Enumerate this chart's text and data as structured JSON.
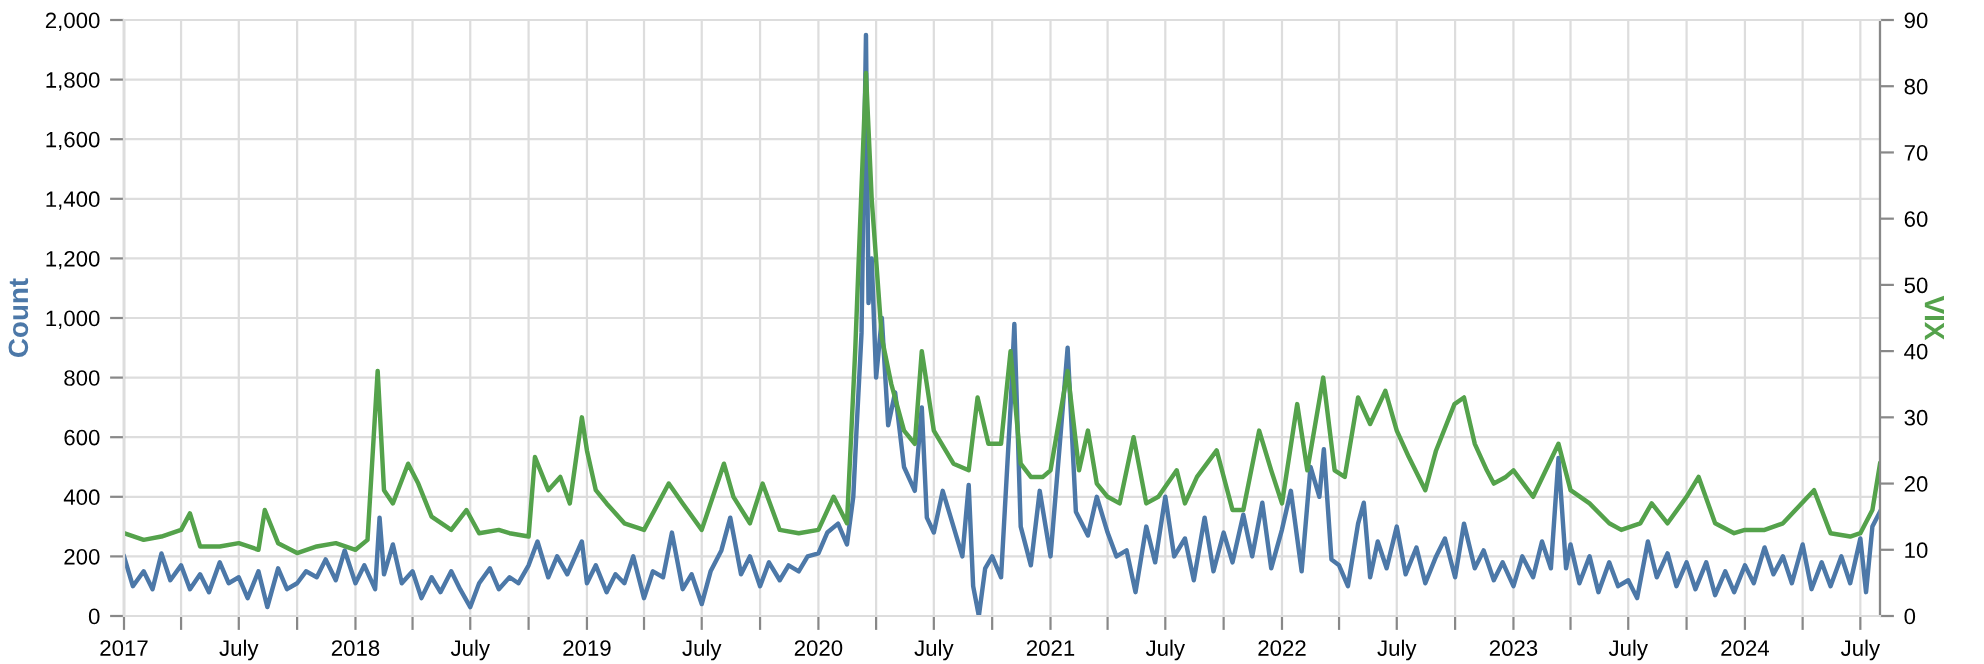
{
  "chart_data": {
    "type": "line",
    "xlabel": null,
    "ylabel": "Count",
    "y2label": "VIX",
    "grid": true,
    "marker": "none",
    "line_style": "solid",
    "xlim": [
      "2017-01-01",
      "2024-08-01"
    ],
    "xticks": [
      {
        "value": "2017-01-01",
        "label": "2017"
      },
      {
        "value": "2017-04-01",
        "label": null
      },
      {
        "value": "2017-07-01",
        "label": "July"
      },
      {
        "value": "2017-10-01",
        "label": null
      },
      {
        "value": "2018-01-01",
        "label": "2018"
      },
      {
        "value": "2018-04-01",
        "label": null
      },
      {
        "value": "2018-07-01",
        "label": "July"
      },
      {
        "value": "2018-10-01",
        "label": null
      },
      {
        "value": "2019-01-01",
        "label": "2019"
      },
      {
        "value": "2019-04-01",
        "label": null
      },
      {
        "value": "2019-07-01",
        "label": "July"
      },
      {
        "value": "2019-10-01",
        "label": null
      },
      {
        "value": "2020-01-01",
        "label": "2020"
      },
      {
        "value": "2020-04-01",
        "label": null
      },
      {
        "value": "2020-07-01",
        "label": "July"
      },
      {
        "value": "2020-10-01",
        "label": null
      },
      {
        "value": "2021-01-01",
        "label": "2021"
      },
      {
        "value": "2021-04-01",
        "label": null
      },
      {
        "value": "2021-07-01",
        "label": "July"
      },
      {
        "value": "2021-10-01",
        "label": null
      },
      {
        "value": "2022-01-01",
        "label": "2022"
      },
      {
        "value": "2022-04-01",
        "label": null
      },
      {
        "value": "2022-07-01",
        "label": "July"
      },
      {
        "value": "2022-10-01",
        "label": null
      },
      {
        "value": "2023-01-01",
        "label": "2023"
      },
      {
        "value": "2023-04-01",
        "label": null
      },
      {
        "value": "2023-07-01",
        "label": "July"
      },
      {
        "value": "2023-10-01",
        "label": null
      },
      {
        "value": "2024-01-01",
        "label": "2024"
      },
      {
        "value": "2024-04-01",
        "label": null
      },
      {
        "value": "2024-07-01",
        "label": "July"
      }
    ],
    "ylim": [
      0,
      2000
    ],
    "yticks": [
      0,
      200,
      400,
      600,
      800,
      {
        "value": 1000,
        "label": "1,000"
      },
      {
        "value": 1200,
        "label": "1,200"
      },
      {
        "value": 1400,
        "label": "1,400"
      },
      {
        "value": 1600,
        "label": "1,600"
      },
      {
        "value": 1800,
        "label": "1,800"
      },
      {
        "value": 2000,
        "label": "2,000"
      }
    ],
    "y2lim": [
      0,
      90
    ],
    "y2ticks": [
      0,
      10,
      20,
      30,
      40,
      50,
      60,
      70,
      80,
      90
    ],
    "series": [
      {
        "color": "#4c78a8",
        "x": [
          "2017-01-01",
          "2017-01-15",
          "2017-02-01",
          "2017-02-15",
          "2017-03-01",
          "2017-03-15",
          "2017-04-01",
          "2017-04-15",
          "2017-05-01",
          "2017-05-15",
          "2017-06-01",
          "2017-06-15",
          "2017-07-01",
          "2017-07-15",
          "2017-08-01",
          "2017-08-15",
          "2017-09-01",
          "2017-09-15",
          "2017-10-01",
          "2017-10-15",
          "2017-11-01",
          "2017-11-15",
          "2017-12-01",
          "2017-12-15",
          "2018-01-01",
          "2018-01-15",
          "2018-02-01",
          "2018-02-08",
          "2018-02-15",
          "2018-03-01",
          "2018-03-15",
          "2018-04-01",
          "2018-04-15",
          "2018-05-01",
          "2018-05-15",
          "2018-06-01",
          "2018-06-15",
          "2018-07-01",
          "2018-07-15",
          "2018-08-01",
          "2018-08-15",
          "2018-09-01",
          "2018-09-15",
          "2018-10-01",
          "2018-10-15",
          "2018-11-01",
          "2018-11-15",
          "2018-12-01",
          "2018-12-24",
          "2019-01-01",
          "2019-01-15",
          "2019-02-01",
          "2019-02-15",
          "2019-03-01",
          "2019-03-15",
          "2019-04-01",
          "2019-04-15",
          "2019-05-01",
          "2019-05-15",
          "2019-06-01",
          "2019-06-15",
          "2019-07-01",
          "2019-07-15",
          "2019-08-01",
          "2019-08-15",
          "2019-09-01",
          "2019-09-15",
          "2019-10-01",
          "2019-10-15",
          "2019-11-01",
          "2019-11-15",
          "2019-12-01",
          "2019-12-15",
          "2020-01-01",
          "2020-01-15",
          "2020-02-01",
          "2020-02-15",
          "2020-02-25",
          "2020-03-01",
          "2020-03-09",
          "2020-03-12",
          "2020-03-16",
          "2020-03-20",
          "2020-03-25",
          "2020-04-01",
          "2020-04-10",
          "2020-04-20",
          "2020-05-01",
          "2020-05-15",
          "2020-06-01",
          "2020-06-12",
          "2020-06-20",
          "2020-07-01",
          "2020-07-15",
          "2020-08-01",
          "2020-08-15",
          "2020-08-25",
          "2020-09-01",
          "2020-09-10",
          "2020-09-20",
          "2020-10-01",
          "2020-10-15",
          "2020-10-30",
          "2020-11-05",
          "2020-11-15",
          "2020-12-01",
          "2020-12-15",
          "2021-01-01",
          "2021-01-15",
          "2021-01-28",
          "2021-02-10",
          "2021-03-01",
          "2021-03-15",
          "2021-04-01",
          "2021-04-15",
          "2021-05-01",
          "2021-05-15",
          "2021-06-01",
          "2021-06-15",
          "2021-07-01",
          "2021-07-15",
          "2021-08-01",
          "2021-08-15",
          "2021-09-01",
          "2021-09-15",
          "2021-10-01",
          "2021-10-15",
          "2021-11-01",
          "2021-11-15",
          "2021-12-01",
          "2021-12-15",
          "2022-01-01",
          "2022-01-15",
          "2022-02-01",
          "2022-02-15",
          "2022-03-01",
          "2022-03-08",
          "2022-03-20",
          "2022-04-01",
          "2022-04-15",
          "2022-05-01",
          "2022-05-10",
          "2022-05-20",
          "2022-06-01",
          "2022-06-15",
          "2022-07-01",
          "2022-07-15",
          "2022-08-01",
          "2022-08-15",
          "2022-09-01",
          "2022-09-15",
          "2022-10-01",
          "2022-10-15",
          "2022-11-01",
          "2022-11-15",
          "2022-12-01",
          "2022-12-15",
          "2023-01-01",
          "2023-01-15",
          "2023-02-01",
          "2023-02-15",
          "2023-03-01",
          "2023-03-13",
          "2023-03-25",
          "2023-04-01",
          "2023-04-15",
          "2023-05-01",
          "2023-05-15",
          "2023-06-01",
          "2023-06-15",
          "2023-07-01",
          "2023-07-15",
          "2023-08-01",
          "2023-08-15",
          "2023-09-01",
          "2023-09-15",
          "2023-10-01",
          "2023-10-15",
          "2023-11-01",
          "2023-11-15",
          "2023-12-01",
          "2023-12-15",
          "2024-01-01",
          "2024-01-15",
          "2024-02-01",
          "2024-02-15",
          "2024-03-01",
          "2024-03-15",
          "2024-04-01",
          "2024-04-15",
          "2024-05-01",
          "2024-05-15",
          "2024-06-01",
          "2024-06-15",
          "2024-07-01",
          "2024-07-10",
          "2024-07-20",
          "2024-08-01"
        ],
        "values": [
          200,
          100,
          150,
          90,
          210,
          120,
          170,
          90,
          140,
          80,
          180,
          110,
          130,
          60,
          150,
          30,
          160,
          90,
          110,
          150,
          130,
          190,
          120,
          220,
          110,
          170,
          90,
          330,
          140,
          240,
          110,
          150,
          60,
          130,
          80,
          150,
          90,
          30,
          110,
          160,
          90,
          130,
          110,
          170,
          250,
          130,
          200,
          140,
          250,
          110,
          170,
          80,
          140,
          110,
          200,
          60,
          150,
          130,
          280,
          90,
          140,
          40,
          150,
          220,
          330,
          140,
          200,
          100,
          180,
          120,
          170,
          150,
          200,
          210,
          280,
          310,
          240,
          400,
          620,
          950,
          1400,
          1950,
          1050,
          1200,
          800,
          1000,
          640,
          750,
          500,
          420,
          700,
          330,
          280,
          420,
          300,
          200,
          440,
          100,
          0,
          160,
          200,
          130,
          700,
          980,
          300,
          170,
          420,
          200,
          560,
          900,
          350,
          270,
          400,
          280,
          200,
          220,
          80,
          300,
          180,
          400,
          200,
          260,
          120,
          330,
          150,
          280,
          180,
          340,
          200,
          380,
          160,
          290,
          420,
          150,
          500,
          400,
          560,
          190,
          170,
          100,
          310,
          380,
          130,
          250,
          160,
          300,
          140,
          230,
          110,
          200,
          260,
          130,
          310,
          160,
          220,
          120,
          180,
          100,
          200,
          130,
          250,
          160,
          530,
          160,
          240,
          110,
          200,
          80,
          180,
          100,
          120,
          60,
          250,
          130,
          210,
          100,
          180,
          90,
          180,
          70,
          150,
          80,
          170,
          110,
          230,
          140,
          200,
          110,
          240,
          90,
          180,
          100,
          200,
          110,
          260,
          80,
          300,
          350
        ]
      },
      {
        "color": "#54a24b",
        "axis": "y2",
        "x": [
          "2017-01-01",
          "2017-02-01",
          "2017-03-01",
          "2017-04-01",
          "2017-04-15",
          "2017-05-01",
          "2017-06-01",
          "2017-07-01",
          "2017-08-01",
          "2017-08-11",
          "2017-09-01",
          "2017-10-01",
          "2017-11-01",
          "2017-12-01",
          "2018-01-01",
          "2018-01-20",
          "2018-02-05",
          "2018-02-15",
          "2018-03-01",
          "2018-03-25",
          "2018-04-10",
          "2018-05-01",
          "2018-06-01",
          "2018-06-25",
          "2018-07-15",
          "2018-08-15",
          "2018-09-01",
          "2018-10-01",
          "2018-10-11",
          "2018-11-01",
          "2018-11-20",
          "2018-12-05",
          "2018-12-24",
          "2019-01-01",
          "2019-01-15",
          "2019-02-01",
          "2019-03-01",
          "2019-04-01",
          "2019-05-10",
          "2019-06-01",
          "2019-07-01",
          "2019-08-05",
          "2019-08-20",
          "2019-09-15",
          "2019-10-05",
          "2019-11-01",
          "2019-12-01",
          "2020-01-01",
          "2020-01-25",
          "2020-02-15",
          "2020-02-28",
          "2020-03-16",
          "2020-03-25",
          "2020-04-10",
          "2020-04-25",
          "2020-05-15",
          "2020-06-01",
          "2020-06-12",
          "2020-07-01",
          "2020-08-01",
          "2020-08-25",
          "2020-09-08",
          "2020-09-25",
          "2020-10-15",
          "2020-10-30",
          "2020-11-15",
          "2020-12-01",
          "2020-12-20",
          "2021-01-01",
          "2021-01-28",
          "2021-02-15",
          "2021-03-01",
          "2021-03-15",
          "2021-04-01",
          "2021-04-20",
          "2021-05-12",
          "2021-06-01",
          "2021-06-20",
          "2021-07-19",
          "2021-08-01",
          "2021-08-20",
          "2021-09-20",
          "2021-10-15",
          "2021-11-01",
          "2021-11-26",
          "2021-12-15",
          "2022-01-01",
          "2022-01-25",
          "2022-02-10",
          "2022-03-07",
          "2022-03-25",
          "2022-04-10",
          "2022-05-01",
          "2022-05-20",
          "2022-06-13",
          "2022-07-01",
          "2022-07-20",
          "2022-08-15",
          "2022-09-01",
          "2022-09-30",
          "2022-10-15",
          "2022-11-01",
          "2022-11-20",
          "2022-12-01",
          "2022-12-20",
          "2023-01-01",
          "2023-02-01",
          "2023-03-13",
          "2023-04-01",
          "2023-05-01",
          "2023-06-01",
          "2023-06-20",
          "2023-07-20",
          "2023-08-07",
          "2023-09-01",
          "2023-10-01",
          "2023-10-20",
          "2023-11-15",
          "2023-12-15",
          "2024-01-01",
          "2024-02-01",
          "2024-03-01",
          "2024-04-19",
          "2024-05-15",
          "2024-06-15",
          "2024-07-01",
          "2024-07-20",
          "2024-08-01"
        ],
        "values": [
          12.5,
          11.5,
          12,
          13,
          15.5,
          10.5,
          10.5,
          11,
          10,
          16,
          11,
          9.5,
          10.5,
          11,
          10,
          11.5,
          37,
          19,
          17,
          23,
          20,
          15,
          13,
          16,
          12.5,
          13,
          12.5,
          12,
          24,
          19,
          21,
          17,
          30,
          25,
          19,
          17,
          14,
          13,
          20,
          17,
          13,
          23,
          18,
          14,
          20,
          13,
          12.5,
          13,
          18,
          14,
          40,
          82,
          63,
          42,
          35,
          28,
          26,
          40,
          28,
          23,
          22,
          33,
          26,
          26,
          40,
          23,
          21,
          21,
          22,
          37,
          22,
          28,
          20,
          18,
          17,
          27,
          17,
          18,
          22,
          17,
          21,
          25,
          16,
          16,
          28,
          22,
          17,
          32,
          22,
          36,
          22,
          21,
          33,
          29,
          34,
          28,
          24,
          19,
          25,
          32,
          33,
          26,
          22,
          20,
          21,
          22,
          18,
          26,
          19,
          17,
          14,
          13,
          14,
          17,
          14,
          18,
          21,
          14,
          12.5,
          13,
          13,
          14,
          19,
          12.5,
          12,
          12.5,
          16,
          23
        ]
      }
    ]
  }
}
